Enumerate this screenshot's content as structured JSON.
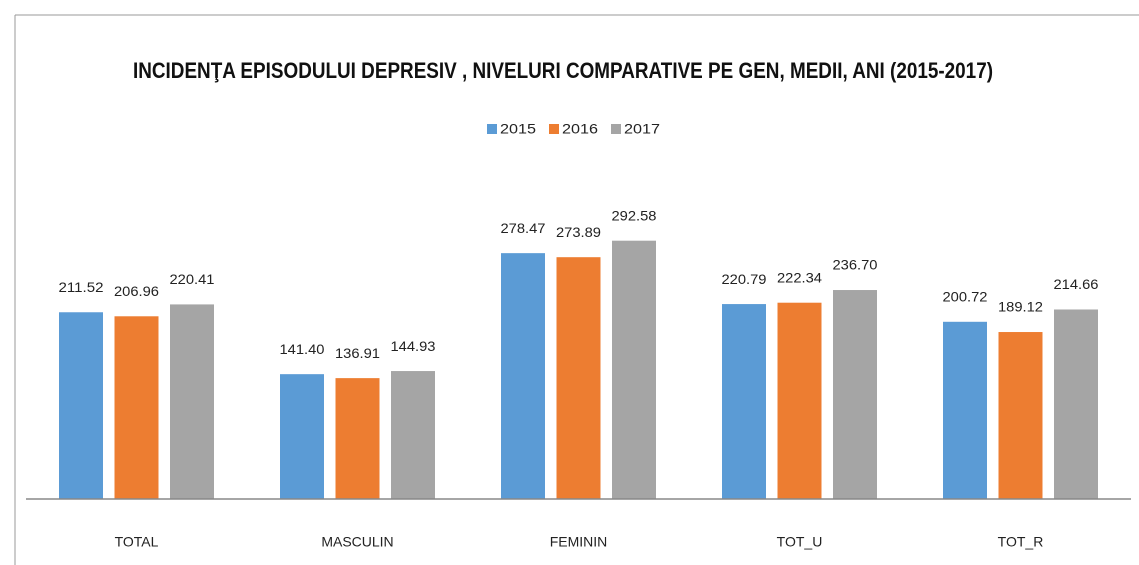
{
  "chart_data": {
    "type": "bar",
    "title": "INCIDENŢA EPISODULUI DEPRESIV , NIVELURI COMPARATIVE PE GEN, MEDII, ANI (2015-2017)",
    "categories": [
      "TOTAL",
      "MASCULIN",
      "FEMININ",
      "TOT_U",
      "TOT_R"
    ],
    "series": [
      {
        "name": "2015",
        "color": "#5b9bd5",
        "values": [
          211.52,
          141.4,
          278.47,
          220.79,
          200.72
        ],
        "value_labels": [
          "211.52",
          "141.40",
          "278.47",
          "220.79",
          "200.72"
        ]
      },
      {
        "name": "2016",
        "color": "#ed7d31",
        "values": [
          206.96,
          136.91,
          273.89,
          222.34,
          189.12
        ],
        "value_labels": [
          "206.96",
          "136.91",
          "273.89",
          "222.34",
          "189.12"
        ]
      },
      {
        "name": "2017",
        "color": "#a5a5a5",
        "values": [
          220.41,
          144.93,
          292.58,
          236.7,
          214.66
        ],
        "value_labels": [
          "220.41",
          "144.93",
          "292.58",
          "236.70",
          "214.66"
        ]
      }
    ],
    "ylim": [
      0,
      350
    ],
    "legend": "top"
  }
}
